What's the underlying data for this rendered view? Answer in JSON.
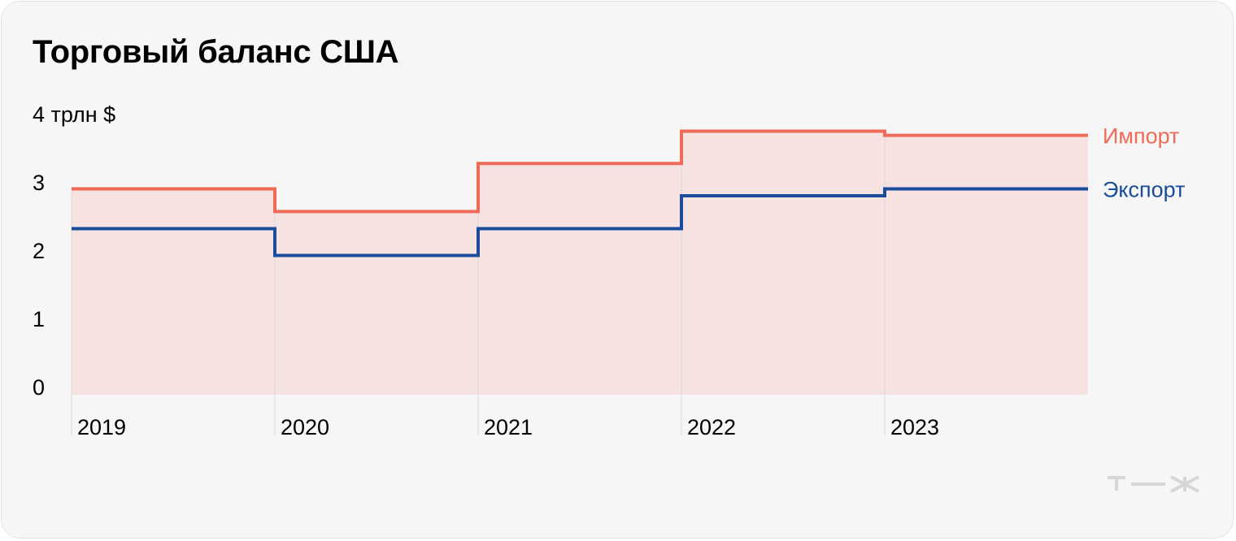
{
  "title": "Торговый баланс США",
  "colors": {
    "import": "#ef6b57",
    "export": "#1b4c9c",
    "fill": "#f7e2e2",
    "grid": "#d9d9d9",
    "logo": "#d6d6d6"
  },
  "logo_icon": "tzh-logo-icon",
  "chart_data": {
    "type": "line",
    "step": true,
    "categories": [
      "2019",
      "2020",
      "2021",
      "2022",
      "2023"
    ],
    "series": [
      {
        "name": "Импорт",
        "values": [
          3.0,
          2.67,
          3.37,
          3.84,
          3.78
        ]
      },
      {
        "name": "Экспорт",
        "values": [
          2.42,
          2.03,
          2.42,
          2.9,
          3.0
        ]
      }
    ],
    "yticks": [
      "0",
      "1",
      "2",
      "3",
      "4 трлн $"
    ],
    "ylim": [
      0,
      4
    ],
    "grid": "vertical",
    "legend": "right end of lines"
  }
}
